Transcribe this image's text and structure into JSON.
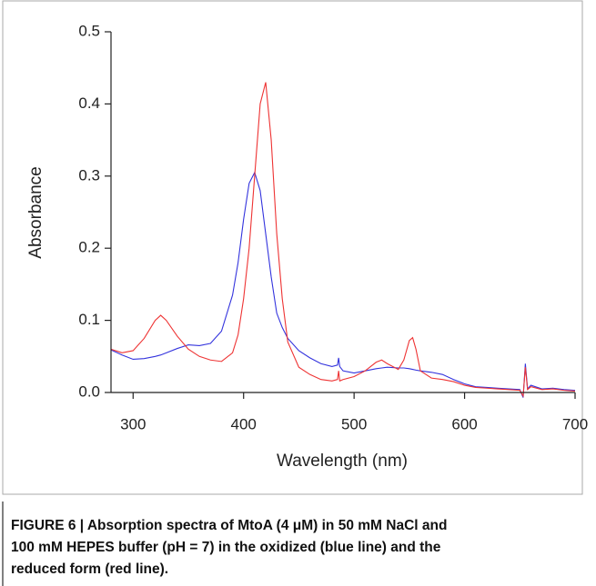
{
  "chart_data": {
    "type": "line",
    "y_label": "Absorbance",
    "x_label": "Wavelength (nm)",
    "caption": [
      "FIGURE 6 | Absorption spectra of MtoA (4 μM) in 50 mM NaCl and",
      "100 mM HEPES buffer (pH = 7) in the oxidized (blue line) and the",
      "reduced form (red line)."
    ],
    "x": [
      280,
      290,
      300,
      310,
      320,
      325,
      330,
      340,
      350,
      360,
      370,
      380,
      390,
      395,
      400,
      405,
      410,
      415,
      420,
      425,
      430,
      435,
      440,
      450,
      460,
      470,
      480,
      485,
      486,
      487,
      490,
      500,
      510,
      520,
      525,
      530,
      540,
      545,
      550,
      553,
      556,
      560,
      570,
      580,
      590,
      600,
      610,
      620,
      630,
      640,
      650,
      653,
      655,
      657,
      660,
      670,
      680,
      690,
      700
    ],
    "series": [
      {
        "color": "#3333dd",
        "values": [
          0.059,
          0.052,
          0.046,
          0.047,
          0.05,
          0.052,
          0.055,
          0.061,
          0.066,
          0.065,
          0.068,
          0.085,
          0.135,
          0.18,
          0.24,
          0.29,
          0.305,
          0.28,
          0.22,
          0.16,
          0.11,
          0.09,
          0.075,
          0.058,
          0.048,
          0.04,
          0.036,
          0.038,
          0.048,
          0.036,
          0.03,
          0.027,
          0.03,
          0.033,
          0.034,
          0.035,
          0.034,
          0.034,
          0.033,
          0.032,
          0.031,
          0.03,
          0.028,
          0.025,
          0.018,
          0.012,
          0.008,
          0.007,
          0.006,
          0.005,
          0.004,
          -0.007,
          0.04,
          0.005,
          0.01,
          0.005,
          0.006,
          0.004,
          0.003
        ]
      },
      {
        "color": "#ee3333",
        "values": [
          0.06,
          0.055,
          0.058,
          0.075,
          0.1,
          0.107,
          0.1,
          0.078,
          0.06,
          0.05,
          0.045,
          0.043,
          0.055,
          0.08,
          0.13,
          0.2,
          0.3,
          0.4,
          0.43,
          0.35,
          0.22,
          0.13,
          0.07,
          0.035,
          0.025,
          0.018,
          0.016,
          0.018,
          0.03,
          0.016,
          0.018,
          0.022,
          0.03,
          0.042,
          0.045,
          0.04,
          0.032,
          0.045,
          0.072,
          0.076,
          0.06,
          0.03,
          0.02,
          0.018,
          0.015,
          0.01,
          0.007,
          0.006,
          0.005,
          0.004,
          0.003,
          -0.005,
          0.035,
          0.004,
          0.008,
          0.004,
          0.005,
          0.003,
          0.002
        ]
      }
    ],
    "xlim": [
      280,
      700
    ],
    "xticks": [
      300,
      400,
      500,
      600,
      700
    ],
    "ylim": [
      0,
      0.5
    ],
    "yticks": [
      {
        "value": 0,
        "label": "0.0"
      },
      0.1,
      0.2,
      0.3,
      0.4,
      0.5
    ]
  }
}
